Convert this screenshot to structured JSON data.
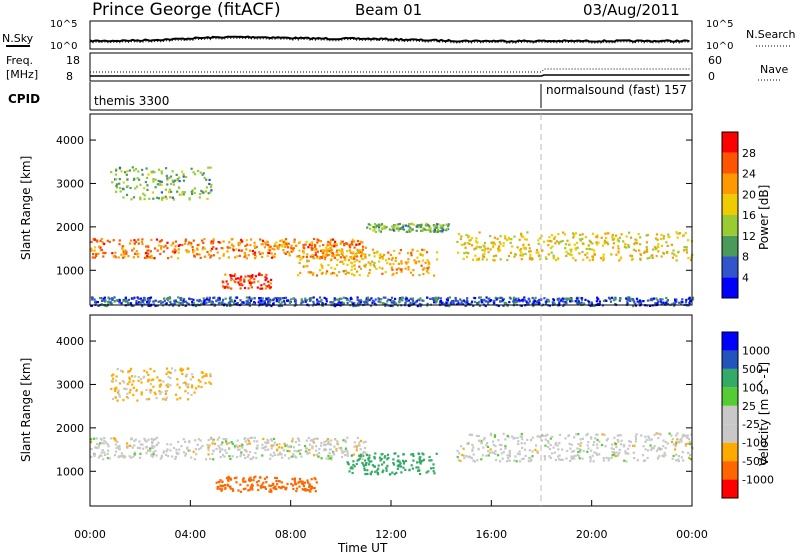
{
  "header": {
    "station": "Prince George (fitACF)",
    "beam": "Beam 01",
    "date": "03/Aug/2011"
  },
  "noise_panel": {
    "left_label": "N.Sky",
    "right_label": "N.Search",
    "left_ticks": [
      "10^5",
      "10^0"
    ],
    "right_ticks": [
      "10^5",
      "10^0"
    ]
  },
  "freq_panel": {
    "left_label_1": "Freq.",
    "left_label_2": "[MHz]",
    "right_label": "Nave",
    "left_ticks": [
      "18",
      "8"
    ],
    "right_ticks": [
      "60",
      "0"
    ]
  },
  "cpid_panel": {
    "label": "CPID",
    "segments": [
      {
        "name": "themis 3300",
        "start_hour": 0
      },
      {
        "name": "normalsound (fast) 157",
        "start_hour": 18
      }
    ]
  },
  "colors": {
    "power_scale": [
      "#0000ff",
      "#3355cc",
      "#4a9a5a",
      "#99cc33",
      "#eecc00",
      "#ff9900",
      "#ff5500",
      "#ff0000"
    ],
    "velocity_scale": [
      "#ff0000",
      "#ff6600",
      "#ffaa00",
      "#c8c8c8",
      "#c8c8c8",
      "#55cc33",
      "#33aa66",
      "#2255bb",
      "#0000ff"
    ]
  },
  "chart_data": [
    {
      "type": "heatmap",
      "name": "power",
      "xlabel": "Time UT",
      "ylabel": "Slant Range [km]",
      "xlim": [
        0,
        24
      ],
      "ylim": [
        200,
        4600
      ],
      "yticks": [
        "1000",
        "2000",
        "3000",
        "4000"
      ],
      "colorbar": {
        "label": "Power [dB]",
        "ticks": [
          "4",
          "8",
          "12",
          "16",
          "20",
          "24",
          "28"
        ],
        "range": [
          0,
          32
        ]
      },
      "bands": [
        {
          "t0": 0.0,
          "t1": 11.0,
          "r0": 1300,
          "r1": 1750,
          "value": 24
        },
        {
          "t0": 11.0,
          "t1": 14.3,
          "r0": 1900,
          "r1": 2100,
          "value": 12
        },
        {
          "t0": 14.6,
          "t1": 24.0,
          "r0": 1250,
          "r1": 1900,
          "value": 18
        },
        {
          "t0": 5.2,
          "t1": 7.2,
          "r0": 600,
          "r1": 950,
          "value": 28
        },
        {
          "t0": 8.2,
          "t1": 13.8,
          "r0": 900,
          "r1": 1500,
          "value": 20
        },
        {
          "t0": 0.8,
          "t1": 4.8,
          "r0": 2650,
          "r1": 3400,
          "value": 12
        },
        {
          "t0": 0.0,
          "t1": 24.0,
          "r0": 200,
          "r1": 400,
          "value": 6
        }
      ]
    },
    {
      "type": "heatmap",
      "name": "velocity",
      "xlabel": "Time UT",
      "ylabel": "Slant Range [km]",
      "xlim": [
        0,
        24
      ],
      "ylim": [
        200,
        4600
      ],
      "xticks": [
        "00:00",
        "04:00",
        "08:00",
        "12:00",
        "16:00",
        "20:00",
        "00:00"
      ],
      "yticks": [
        "1000",
        "2000",
        "3000",
        "4000"
      ],
      "colorbar": {
        "label": "Velocity [m s^-1]",
        "ticks": [
          "1000",
          "500",
          "100",
          "25",
          "-25",
          "-100",
          "-500",
          "-1000"
        ]
      },
      "bands": [
        {
          "t0": 0.0,
          "t1": 11.0,
          "r0": 1300,
          "r1": 1800,
          "value": 0
        },
        {
          "t0": 14.6,
          "t1": 24.0,
          "r0": 1250,
          "r1": 1900,
          "value": 0
        },
        {
          "t0": 10.2,
          "t1": 13.8,
          "r0": 950,
          "r1": 1450,
          "value": 150
        },
        {
          "t0": 5.0,
          "t1": 9.0,
          "r0": 550,
          "r1": 900,
          "value": -200
        },
        {
          "t0": 0.8,
          "t1": 4.8,
          "r0": 2650,
          "r1": 3400,
          "value": -30
        }
      ]
    }
  ]
}
